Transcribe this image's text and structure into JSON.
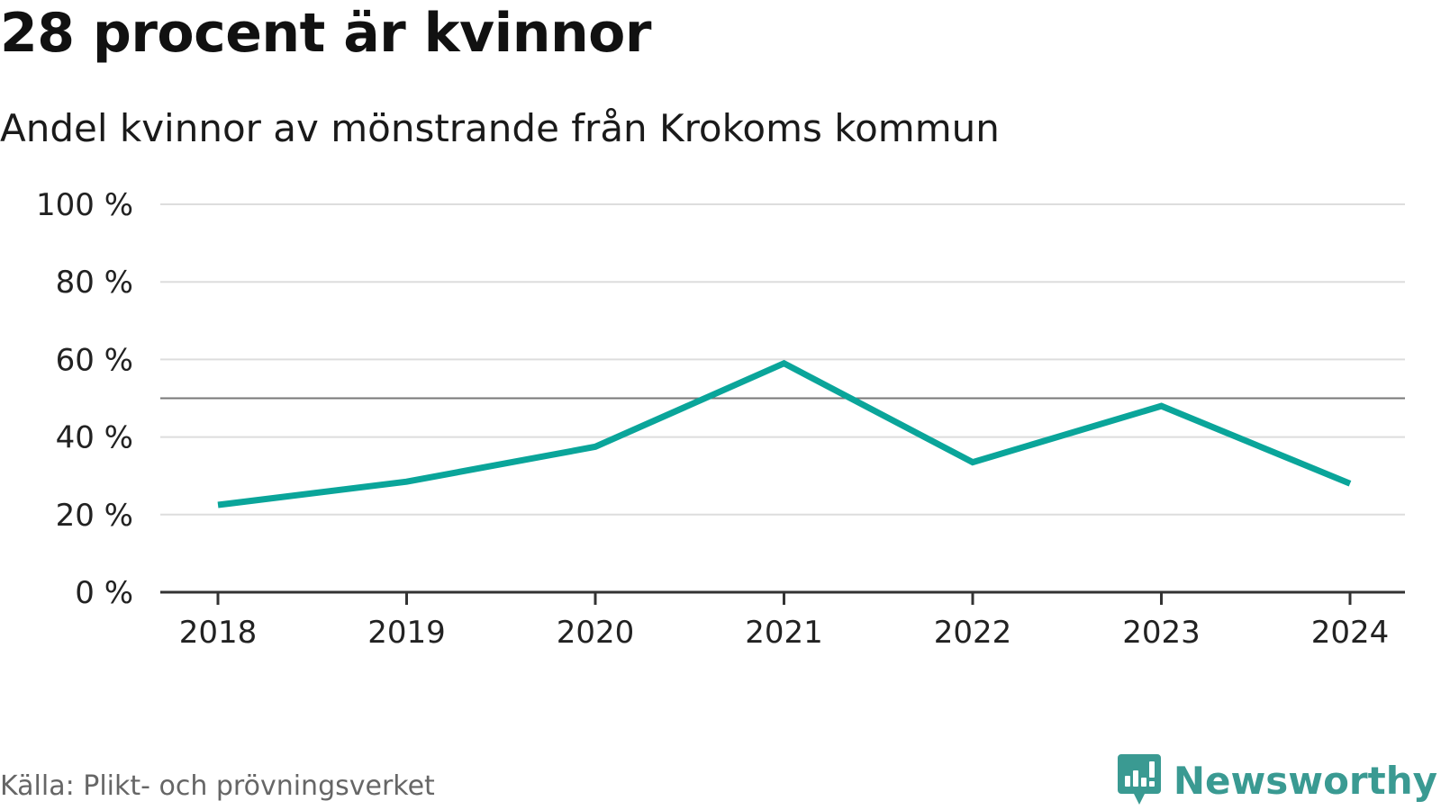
{
  "header": {
    "title": "28 procent är kvinnor",
    "subtitle": "Andel kvinnor av mönstrande från Krokoms kommun"
  },
  "footer": {
    "source": "Källa: Plikt- och prövningsverket",
    "brand": "Newsworthy",
    "brand_icon": "newsworthy-logo-icon"
  },
  "colors": {
    "line": "#0aa59a",
    "grid": "#dddddd",
    "reference_line": "#777777",
    "axis": "#333333",
    "brand": "#3a9a92"
  },
  "chart_data": {
    "type": "line",
    "title": "28 procent är kvinnor",
    "subtitle": "Andel kvinnor av mönstrande från Krokoms kommun",
    "x": [
      "2018",
      "2019",
      "2020",
      "2021",
      "2022",
      "2023",
      "2024"
    ],
    "series": [
      {
        "values": [
          22.5,
          28.5,
          37.5,
          59,
          33.5,
          48,
          28
        ]
      }
    ],
    "reference_line": 50,
    "ylim": [
      0,
      100
    ],
    "yticks": [
      0,
      20,
      40,
      60,
      80,
      100
    ],
    "ytick_labels": [
      "0 %",
      "20 %",
      "40 %",
      "60 %",
      "80 %",
      "100 %"
    ],
    "grid": true,
    "xlabel": "",
    "ylabel": ""
  }
}
